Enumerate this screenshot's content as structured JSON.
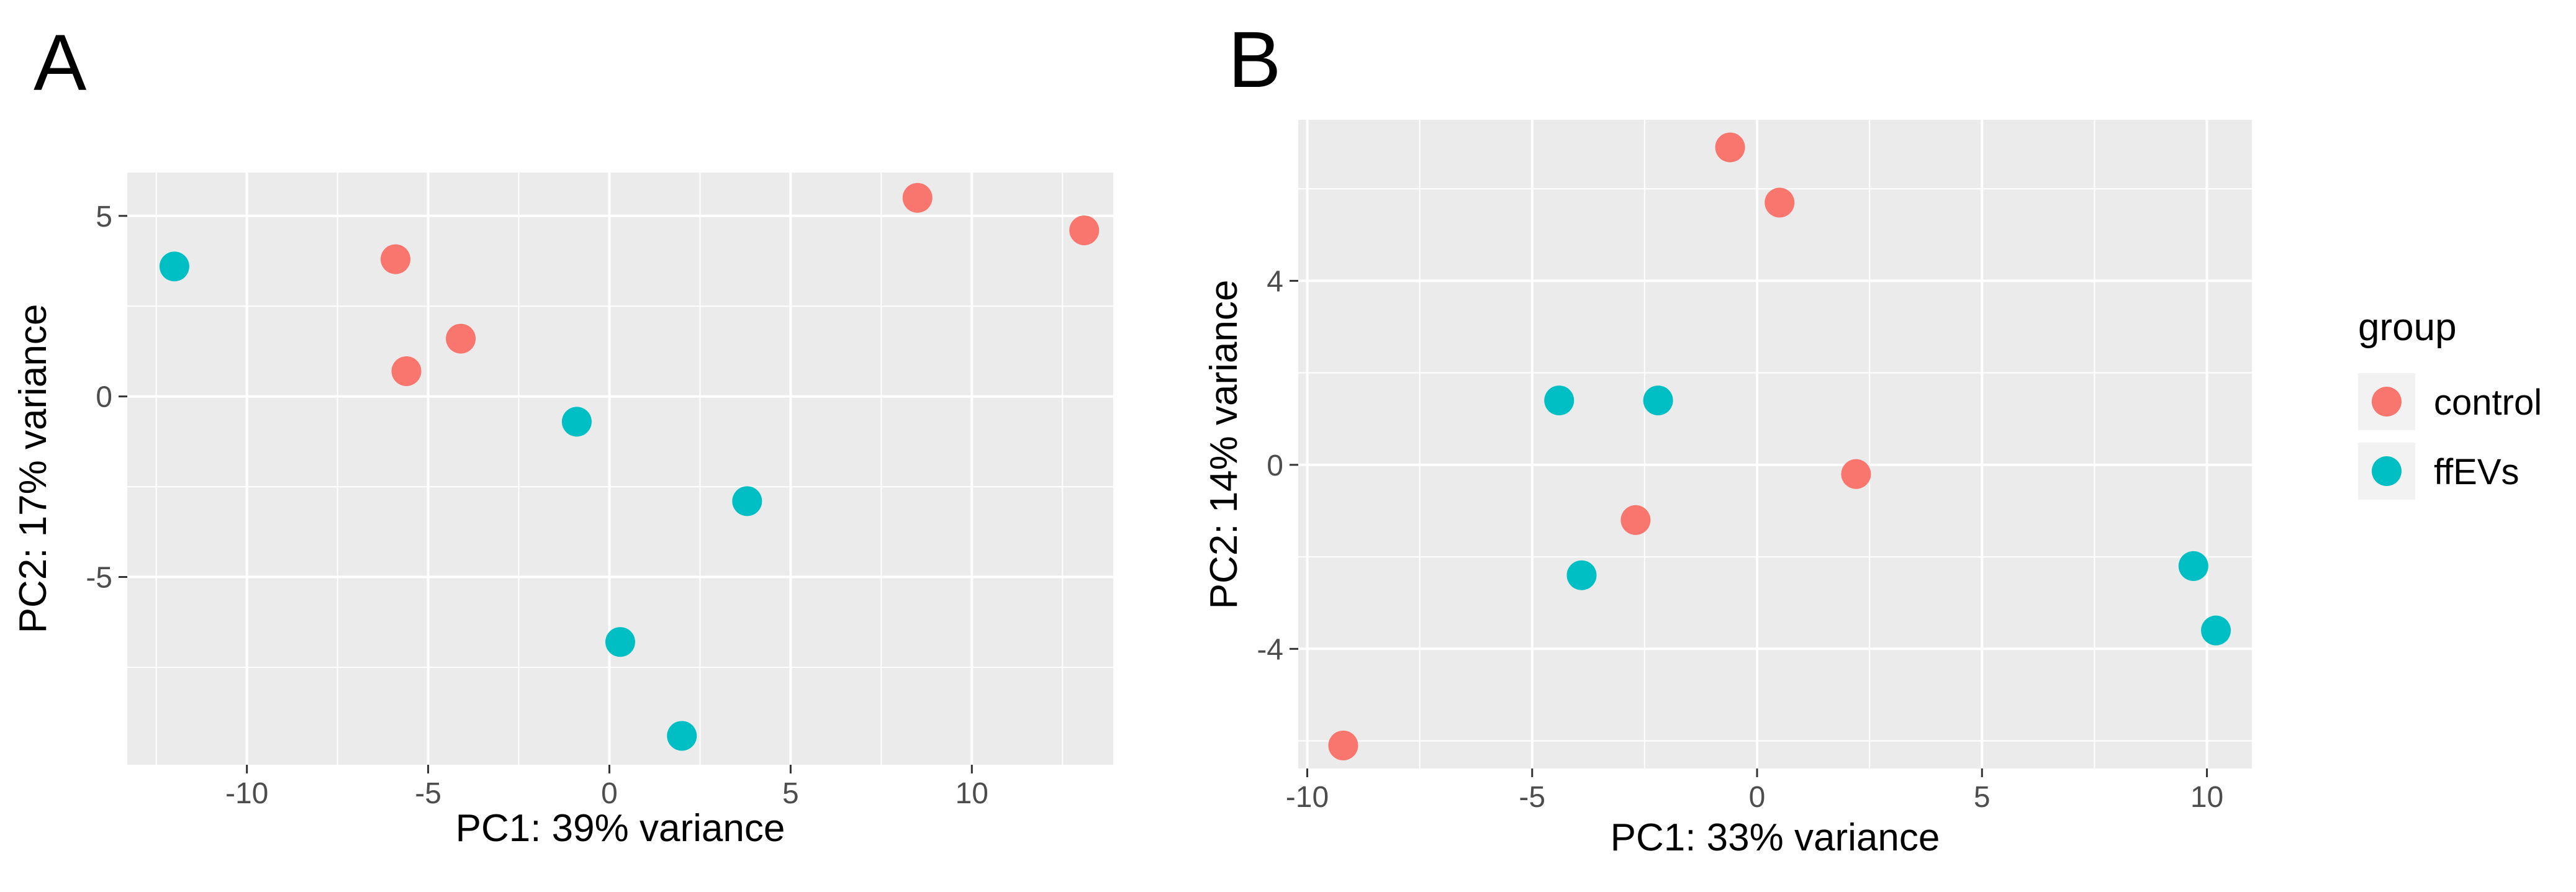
{
  "figure": {
    "legend": {
      "title": "group",
      "entries": [
        {
          "label": "control",
          "color": "#F8766D"
        },
        {
          "label": "ffEVs",
          "color": "#00BFC4"
        }
      ],
      "position": "right"
    }
  },
  "chart_data": [
    {
      "panel": "A",
      "type": "scatter",
      "xlabel": "PC1: 39% variance",
      "ylabel": "PC2: 17% variance",
      "xlim": [
        -13.3,
        13.9
      ],
      "ylim": [
        -10.2,
        6.2
      ],
      "xticks": [
        -10,
        -5,
        0,
        5,
        10
      ],
      "xtick_labels": [
        "-10",
        "-5",
        "0",
        "5",
        "10"
      ],
      "yticks": [
        -5,
        0,
        5
      ],
      "ytick_labels": [
        "-5",
        "0",
        "5"
      ],
      "grid": true,
      "series": [
        {
          "name": "control",
          "color": "#F8766D",
          "points": [
            [
              -5.9,
              3.8
            ],
            [
              -5.6,
              0.7
            ],
            [
              -4.1,
              1.6
            ],
            [
              8.5,
              5.5
            ],
            [
              13.1,
              4.6
            ]
          ]
        },
        {
          "name": "ffEVs",
          "color": "#00BFC4",
          "points": [
            [
              -12.0,
              3.6
            ],
            [
              -0.9,
              -0.7
            ],
            [
              3.8,
              -2.9
            ],
            [
              0.3,
              -6.8
            ],
            [
              2.0,
              -9.4
            ]
          ]
        }
      ]
    },
    {
      "panel": "B",
      "type": "scatter",
      "xlabel": "PC1: 33% variance",
      "ylabel": "PC2: 14% variance",
      "xlim": [
        -10.2,
        11.0
      ],
      "ylim": [
        -6.6,
        7.5
      ],
      "xticks": [
        -10,
        -5,
        0,
        5,
        10
      ],
      "xtick_labels": [
        "-10",
        "-5",
        "0",
        "5",
        "10"
      ],
      "yticks": [
        -4,
        0,
        4
      ],
      "ytick_labels": [
        "-4",
        "0",
        "4"
      ],
      "grid": true,
      "series": [
        {
          "name": "control",
          "color": "#F8766D",
          "points": [
            [
              -9.2,
              -6.1
            ],
            [
              -2.7,
              -1.2
            ],
            [
              -0.6,
              6.9
            ],
            [
              0.5,
              5.7
            ],
            [
              2.2,
              -0.2
            ]
          ]
        },
        {
          "name": "ffEVs",
          "color": "#00BFC4",
          "points": [
            [
              -4.4,
              1.4
            ],
            [
              -3.9,
              -2.4
            ],
            [
              -2.2,
              1.4
            ],
            [
              9.7,
              -2.2
            ],
            [
              10.2,
              -3.6
            ]
          ]
        }
      ]
    }
  ]
}
